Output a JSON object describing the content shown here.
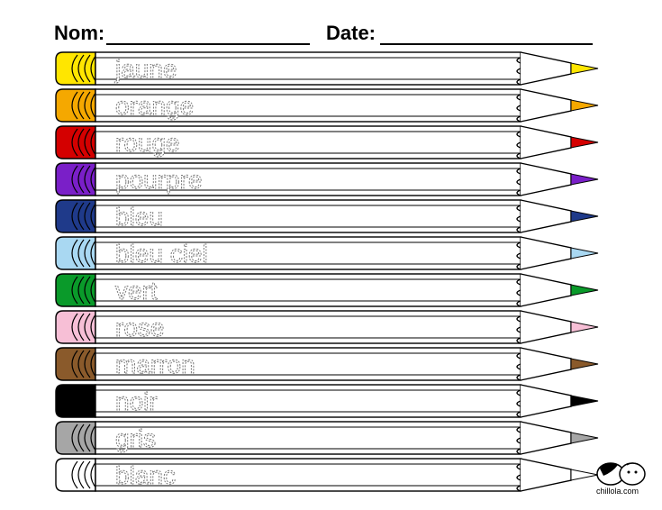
{
  "header": {
    "name_label": "Nom:",
    "date_label": "Date:"
  },
  "pencils": [
    {
      "word": "jaune",
      "color": "#ffe600"
    },
    {
      "word": "orange",
      "color": "#f5a800"
    },
    {
      "word": "rouge",
      "color": "#d40000"
    },
    {
      "word": "pourpre",
      "color": "#7a1fc8"
    },
    {
      "word": "bleu",
      "color": "#1f3a8a"
    },
    {
      "word": "bleu ciel",
      "color": "#a9d8f2"
    },
    {
      "word": "vert",
      "color": "#0a9a2a"
    },
    {
      "word": "rose",
      "color": "#f7bfd6"
    },
    {
      "word": "marron",
      "color": "#8a5a2b"
    },
    {
      "word": "noir",
      "color": "#000000"
    },
    {
      "word": "gris",
      "color": "#a6a6a6"
    },
    {
      "word": "blanc",
      "color": "#ffffff"
    }
  ],
  "logo": {
    "icon": "guinea-pig-icon",
    "text": "chillola.com"
  }
}
